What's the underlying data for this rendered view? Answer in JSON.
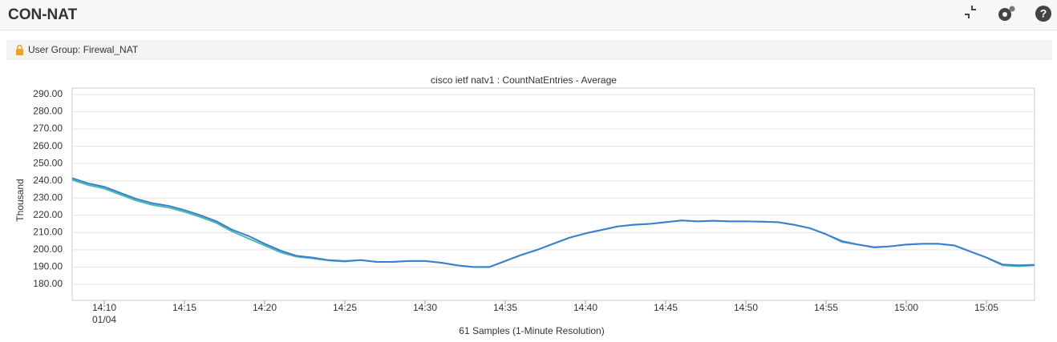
{
  "header": {
    "title": "CON-NAT"
  },
  "filter_bar": {
    "text": "User Group: Firewal_NAT"
  },
  "chart_data": {
    "type": "line",
    "title": "cisco ietf natv1 : CountNatEntries - Average",
    "y_label": "Thousand",
    "x_label": "61 Samples (1-Minute Resolution)",
    "x_date_label": "01/04",
    "x": [
      "14:08",
      "14:09",
      "14:10",
      "14:11",
      "14:12",
      "14:13",
      "14:14",
      "14:15",
      "14:16",
      "14:17",
      "14:18",
      "14:19",
      "14:20",
      "14:21",
      "14:22",
      "14:23",
      "14:24",
      "14:25",
      "14:26",
      "14:27",
      "14:28",
      "14:29",
      "14:30",
      "14:31",
      "14:32",
      "14:33",
      "14:34",
      "14:35",
      "14:36",
      "14:37",
      "14:38",
      "14:39",
      "14:40",
      "14:41",
      "14:42",
      "14:43",
      "14:44",
      "14:45",
      "14:46",
      "14:47",
      "14:48",
      "14:49",
      "14:50",
      "14:51",
      "14:52",
      "14:53",
      "14:54",
      "14:55",
      "14:56",
      "14:57",
      "14:58",
      "14:59",
      "15:00",
      "15:01",
      "15:02",
      "15:03",
      "15:04",
      "15:05",
      "15:06",
      "15:07",
      "15:08"
    ],
    "xticks": [
      "14:10",
      "14:15",
      "14:20",
      "14:25",
      "14:30",
      "14:35",
      "14:40",
      "14:45",
      "14:50",
      "14:55",
      "15:00",
      "15:05"
    ],
    "series": [
      {
        "color": "#4bb8b0",
        "values": [
          240.5,
          237.5,
          235.5,
          232,
          228.5,
          226,
          224.5,
          222,
          219,
          215.5,
          210.5,
          206.5,
          202.5,
          198.5,
          196,
          195,
          193.8,
          193.2,
          194,
          193,
          193,
          193.5,
          193.5,
          192.5,
          191,
          190,
          190,
          193.5,
          197,
          200,
          203.5,
          207,
          209.5,
          211.5,
          213.5,
          214.5,
          215,
          216,
          217,
          216.5,
          216.8,
          216.5,
          216.5,
          216.3,
          216,
          214.5,
          212.5,
          209,
          204.5,
          203,
          201.3,
          202,
          203,
          203.5,
          203.5,
          202.5,
          199,
          195.5,
          191,
          190.5,
          191
        ]
      },
      {
        "color": "#3a7fcf",
        "values": [
          241.5,
          238.5,
          236.5,
          233,
          229.5,
          227,
          225.5,
          223,
          220,
          216.5,
          211.5,
          208,
          203.5,
          199.5,
          196.5,
          195.5,
          194,
          193.5,
          194,
          193,
          193,
          193.5,
          193.5,
          192.5,
          191,
          190,
          190,
          193.5,
          197,
          200,
          203.5,
          207,
          209.5,
          211.5,
          213.5,
          214.5,
          215,
          216,
          217,
          216.5,
          216.8,
          216.5,
          216.5,
          216.3,
          216,
          214.5,
          212.5,
          209,
          205,
          203,
          201.5,
          202,
          203,
          203.5,
          203.5,
          202.5,
          199,
          195.5,
          191.5,
          191,
          191.3
        ]
      }
    ],
    "ylim": [
      170.7,
      293.7
    ],
    "yticks": [
      {
        "value": 180,
        "label": "180.00"
      },
      {
        "value": 190,
        "label": "190.00"
      },
      {
        "value": 200,
        "label": "200.00"
      },
      {
        "value": 210,
        "label": "210.00"
      },
      {
        "value": 220,
        "label": "220.00"
      },
      {
        "value": 230,
        "label": "230.00"
      },
      {
        "value": 240,
        "label": "240.00"
      },
      {
        "value": 250,
        "label": "250.00"
      },
      {
        "value": 260,
        "label": "260.00"
      },
      {
        "value": 270,
        "label": "270.00"
      },
      {
        "value": 280,
        "label": "280.00"
      },
      {
        "value": 290,
        "label": "290.00"
      }
    ],
    "grid": true
  }
}
